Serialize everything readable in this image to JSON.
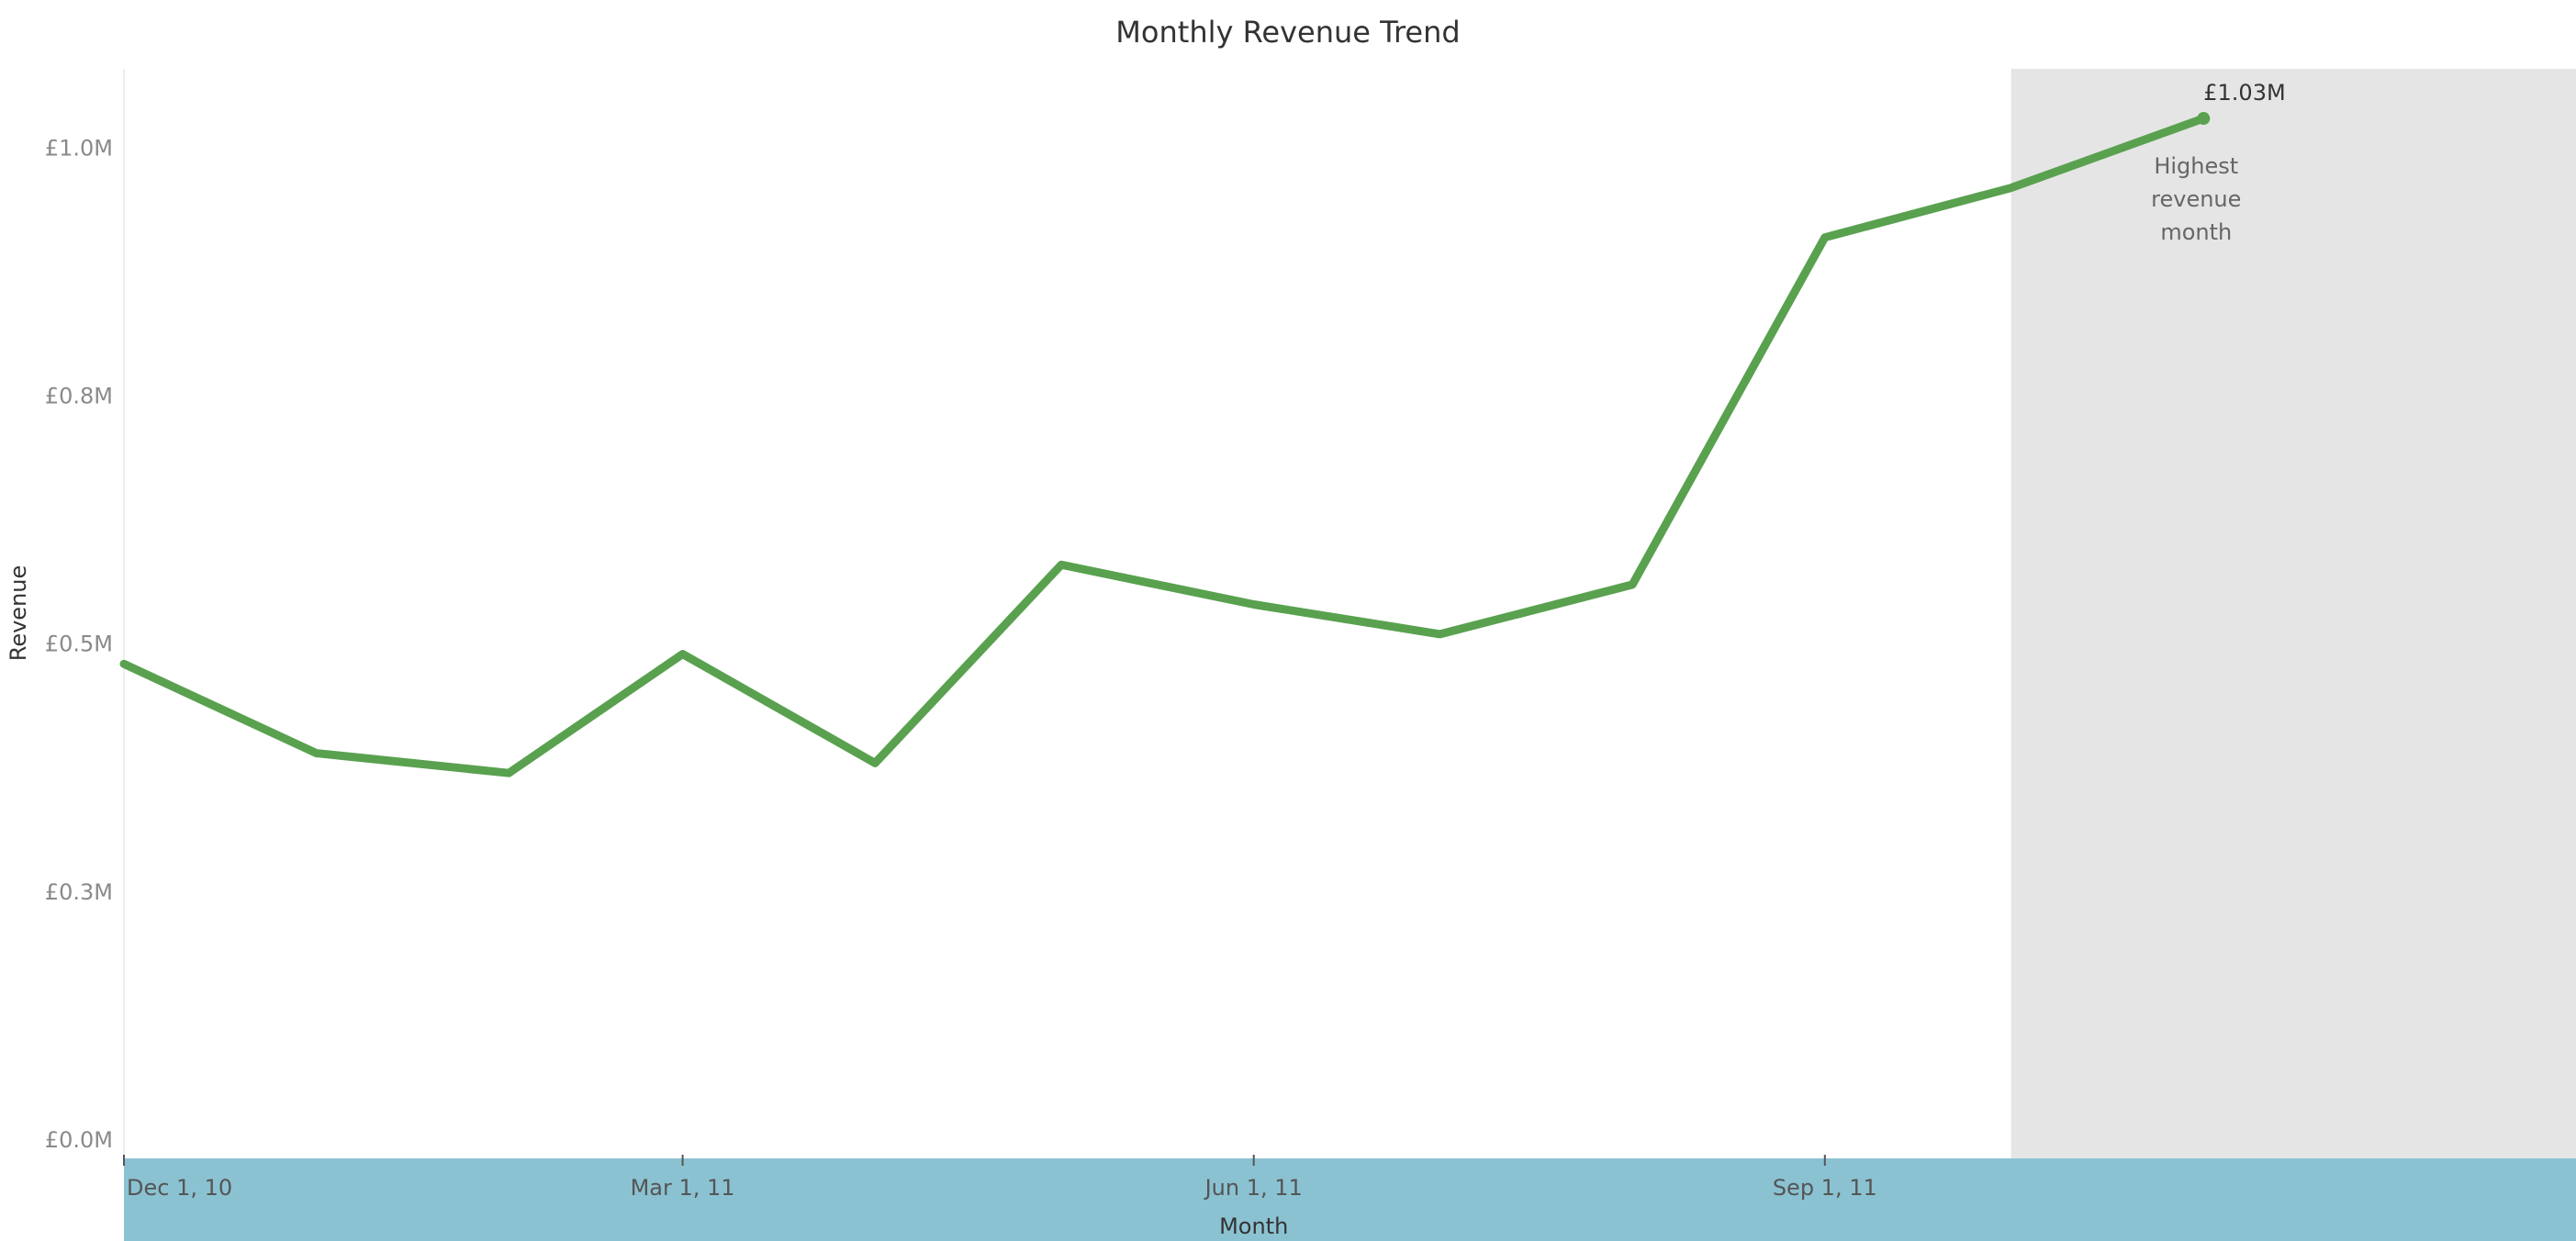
{
  "colors": {
    "line": "#59a14f",
    "highlight_band": "#e5e5e5",
    "axis_band": "#8bc2d1",
    "background": "#ffffff"
  },
  "chart_data": {
    "type": "line",
    "title": "Monthly Revenue Trend",
    "xlabel": "Month",
    "ylabel": "Revenue",
    "ylim": [
      0,
      1.08
    ],
    "xlim": [
      "2010-12-01",
      "2011-12-31"
    ],
    "y_ticks": [
      {
        "value": 0.0,
        "label": "£0.0M"
      },
      {
        "value": 0.25,
        "label": "£0.3M"
      },
      {
        "value": 0.5,
        "label": "£0.5M"
      },
      {
        "value": 0.75,
        "label": "£0.8M"
      },
      {
        "value": 1.0,
        "label": "£1.0M"
      }
    ],
    "x_ticks": [
      {
        "date": "2010-12-01",
        "label": "Dec 1, 10"
      },
      {
        "date": "2011-03-01",
        "label": "Mar 1, 11"
      },
      {
        "date": "2011-06-01",
        "label": "Jun 1, 11"
      },
      {
        "date": "2011-09-01",
        "label": "Sep 1, 11"
      }
    ],
    "series": [
      {
        "x": [
          "2010-12-01",
          "2011-01-01",
          "2011-02-01",
          "2011-03-01",
          "2011-04-01",
          "2011-05-01",
          "2011-06-01",
          "2011-07-01",
          "2011-08-01",
          "2011-09-01",
          "2011-10-01",
          "2011-11-01"
        ],
        "values": [
          0.48,
          0.39,
          0.37,
          0.49,
          0.38,
          0.58,
          0.54,
          0.51,
          0.56,
          0.91,
          0.96,
          1.03
        ]
      }
    ],
    "highlight_range": [
      "2011-10-01",
      "2011-12-31"
    ],
    "annotation": {
      "date": "2011-11-01",
      "value": 1.03,
      "value_label": "£1.03M",
      "text_lines": [
        "Highest",
        "revenue",
        "month"
      ]
    },
    "grid": false
  }
}
